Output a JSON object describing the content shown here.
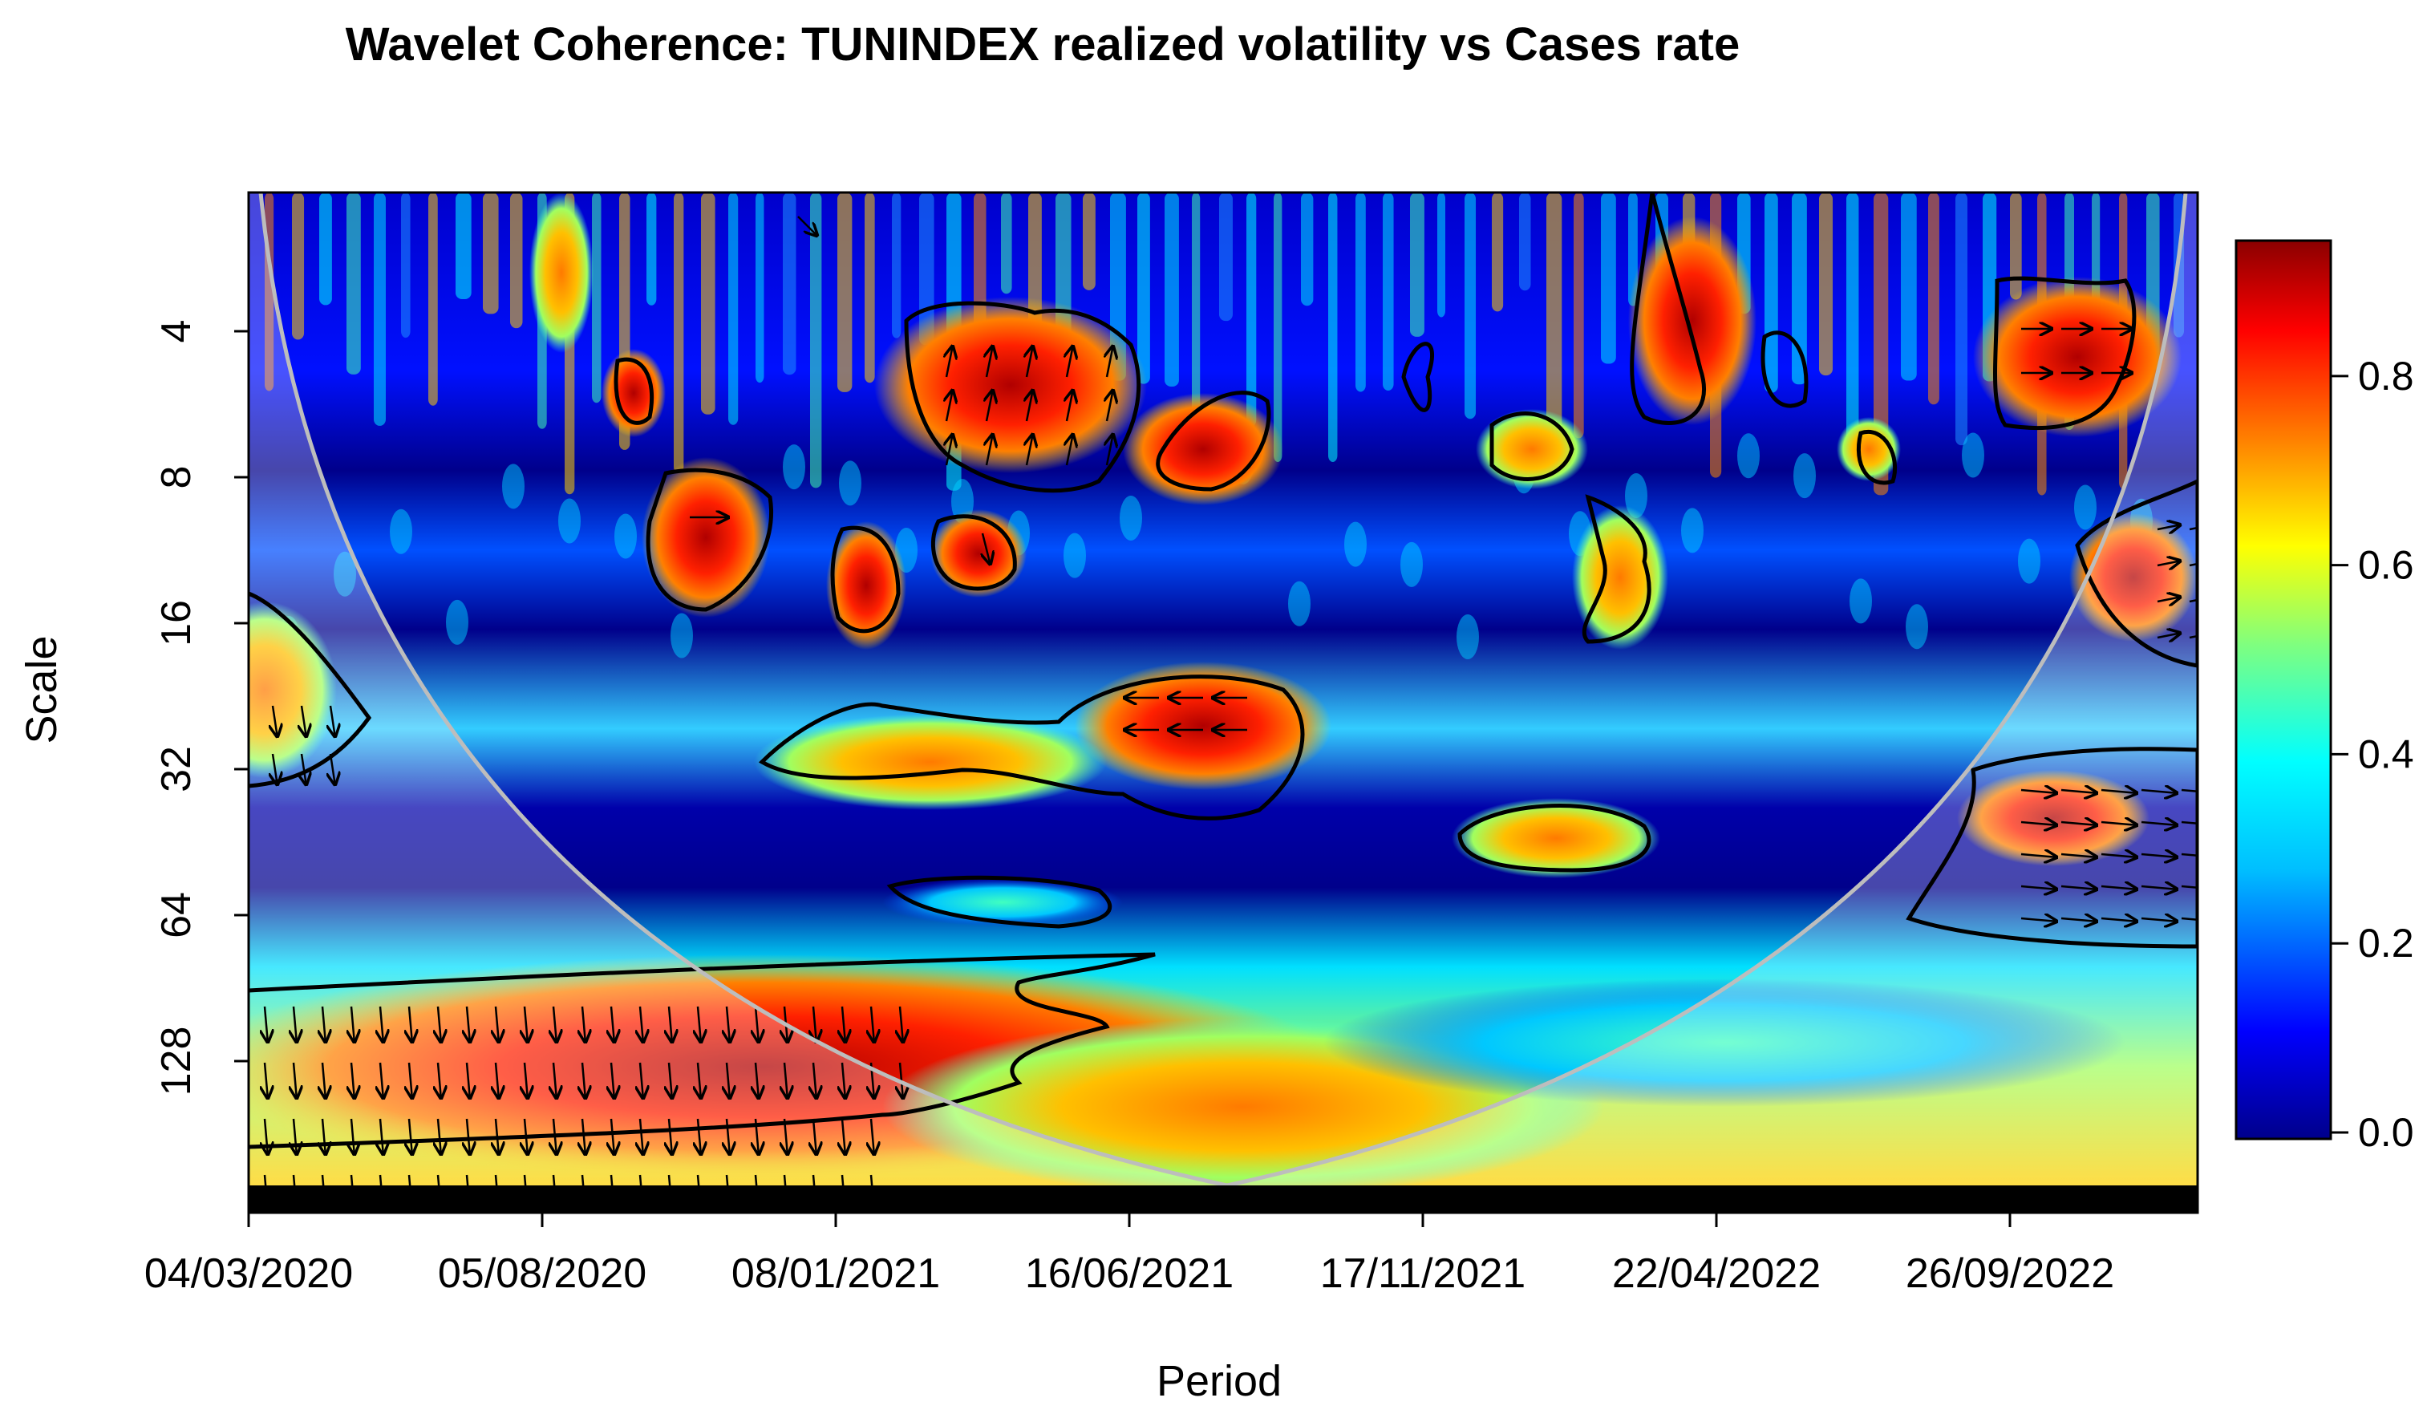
{
  "chart_data": {
    "type": "heatmap",
    "title": "Wavelet Coherence: TUNINDEX realized volatility vs Cases rate",
    "xlabel": "Period",
    "ylabel": "Scale",
    "x_ticks": [
      "04/03/2020",
      "05/08/2020",
      "08/01/2021",
      "16/06/2021",
      "17/11/2021",
      "22/04/2022",
      "26/09/2022"
    ],
    "y_ticks": [
      "4",
      "8",
      "16",
      "32",
      "64",
      "128"
    ],
    "y_scale": "log2",
    "y_reversed": true,
    "colorbar": {
      "ticks": [
        "0.0",
        "0.2",
        "0.4",
        "0.6",
        "0.8"
      ],
      "range": [
        0,
        0.95
      ],
      "colors": [
        "#00008b",
        "#0000ff",
        "#00bfff",
        "#00ffff",
        "#7fff7f",
        "#ffff00",
        "#ff7f00",
        "#ff0000",
        "#8b0000"
      ]
    },
    "regions": [
      {
        "x": "16/06/2021",
        "scale": 4,
        "coherence": 0.9
      },
      {
        "x": "08/01/2021",
        "scale": 12,
        "coherence": 0.85
      },
      {
        "x": "16/06/2021",
        "scale": 24,
        "coherence": 0.9
      },
      {
        "x": "16/06/2021",
        "scale": 170,
        "coherence": 0.85
      },
      {
        "x": "26/09/2022",
        "scale": 40,
        "coherence": 0.85
      },
      {
        "x": "17/11/2021",
        "scale": 40,
        "coherence": 0.75
      }
    ],
    "cone_of_influence": true,
    "significance_contours": true,
    "phase_arrows": true
  }
}
